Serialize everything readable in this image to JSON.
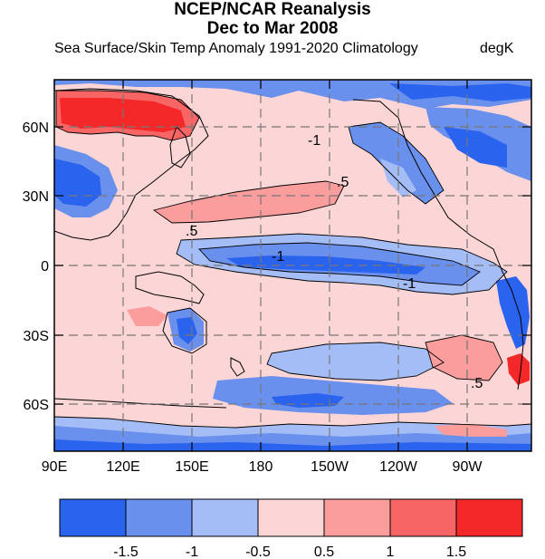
{
  "title": "NCEP/NCAR Reanalysis",
  "subtitle_line": "Dec to Mar 2008",
  "description": "Sea Surface/Skin Temp Anomaly  1991-2020 Climatology",
  "units": "degK",
  "lat_labels": [
    "60N",
    "30N",
    "0",
    "30S",
    "60S"
  ],
  "lon_labels": [
    "90E",
    "120E",
    "150E",
    "180",
    "150W",
    "120W",
    "90W"
  ],
  "colorbar": {
    "colors": [
      "#2a63ee",
      "#6a90ee",
      "#a4bdf6",
      "#fcd6d6",
      "#fb9d9d",
      "#f86565",
      "#f42828"
    ],
    "tick_labels": [
      "-1.5",
      "-1",
      "-0.5",
      "0.5",
      "1",
      "1.5"
    ]
  },
  "contour_labels": [
    ".5",
    ".5",
    "-1",
    "-1",
    ".5",
    "-1"
  ],
  "palette": {
    "neg_strong": "#2a63ee",
    "neg_mid": "#6a90ee",
    "neg_weak": "#a4bdf6",
    "pos_weak": "#fcd6d6",
    "pos_mid": "#fb9d9d",
    "pos_high": "#f86565",
    "pos_strong": "#f42828"
  }
}
